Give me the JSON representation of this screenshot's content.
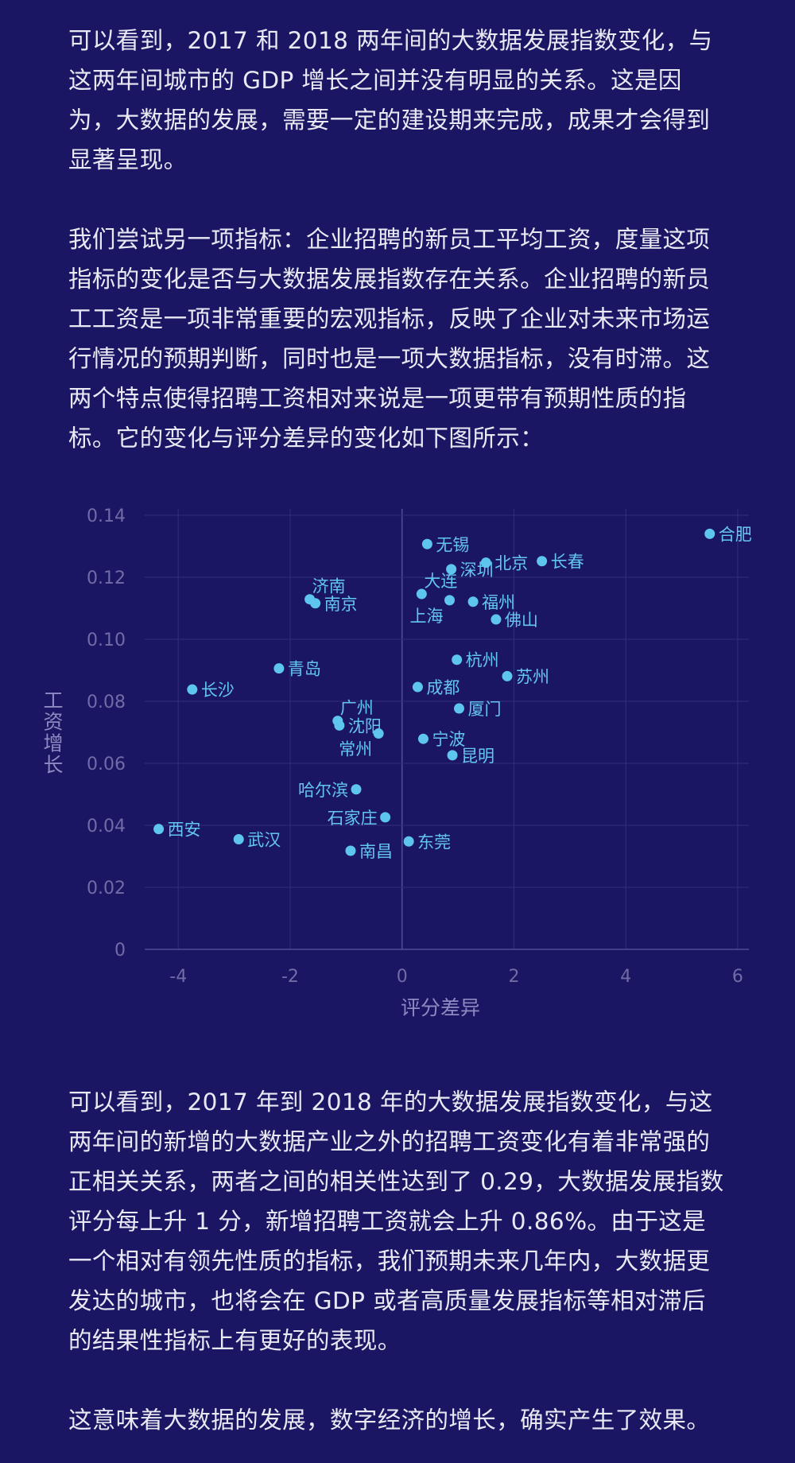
{
  "paragraphs": {
    "p1": "可以看到，2017 和 2018 两年间的大数据发展指数变化，与这两年间城市的 GDP 增长之间并没有明显的关系。这是因为，大数据的发展，需要一定的建设期来完成，成果才会得到显著呈现。",
    "p2": "我们尝试另一项指标：企业招聘的新员工平均工资，度量这项指标的变化是否与大数据发展指数存在关系。企业招聘的新员工工资是一项非常重要的宏观指标，反映了企业对未来市场运行情况的预期判断，同时也是一项大数据指标，没有时滞。这两个特点使得招聘工资相对来说是一项更带有预期性质的指标。它的变化与评分差异的变化如下图所示：",
    "p3": "可以看到，2017 年到 2018 年的大数据发展指数变化，与这两年间的新增的大数据产业之外的招聘工资变化有着非常强的正相关关系，两者之间的相关性达到了 0.29，大数据发展指数评分每上升 1 分，新增招聘工资就会上升 0.86%。由于这是一个相对有领先性质的指标，我们预期未来几年内，大数据更发达的城市，也将会在 GDP 或者高质量发展指标等相对滞后的结果性指标上有更好的表现。",
    "p4": "这意味着大数据的发展，数字经济的增长，确实产生了效果。"
  },
  "chart_data": {
    "type": "scatter",
    "xlabel": "评分差异",
    "ylabel": "工资增长",
    "xlim": [
      -4.6,
      6.2
    ],
    "ylim": [
      0,
      0.14
    ],
    "xticks": [
      -4,
      -2,
      0,
      2,
      4,
      6
    ],
    "yticks": [
      0,
      0.02,
      0.04,
      0.06,
      0.08,
      0.1,
      0.12,
      0.14
    ],
    "ytick_labels": [
      "0",
      "0.02",
      "0.04",
      "0.06",
      "0.08",
      "0.10",
      "0.12",
      "0.14"
    ],
    "grid": true,
    "point_color": "#5ec4f0",
    "points": [
      {
        "name": "合肥",
        "x": 5.5,
        "y": 0.134,
        "pos": "right"
      },
      {
        "name": "无锡",
        "x": 0.45,
        "y": 0.1307,
        "pos": "right"
      },
      {
        "name": "北京",
        "x": 1.5,
        "y": 0.1247,
        "pos": "right"
      },
      {
        "name": "长春",
        "x": 2.5,
        "y": 0.1252,
        "pos": "right"
      },
      {
        "name": "深圳",
        "x": 0.88,
        "y": 0.1226,
        "pos": "right"
      },
      {
        "name": "济南",
        "x": -1.65,
        "y": 0.1129,
        "pos": "above-right"
      },
      {
        "name": "南京",
        "x": -1.55,
        "y": 0.1116,
        "pos": "right"
      },
      {
        "name": "大连",
        "x": 0.35,
        "y": 0.1146,
        "pos": "above-right"
      },
      {
        "name": "福州",
        "x": 1.27,
        "y": 0.1121,
        "pos": "right"
      },
      {
        "name": "上海",
        "x": 0.85,
        "y": 0.1126,
        "pos": "below-left"
      },
      {
        "name": "佛山",
        "x": 1.68,
        "y": 0.1064,
        "pos": "right"
      },
      {
        "name": "杭州",
        "x": 0.98,
        "y": 0.0934,
        "pos": "right"
      },
      {
        "name": "青岛",
        "x": -2.2,
        "y": 0.0906,
        "pos": "right"
      },
      {
        "name": "苏州",
        "x": 1.88,
        "y": 0.0881,
        "pos": "right"
      },
      {
        "name": "长沙",
        "x": -3.75,
        "y": 0.0838,
        "pos": "right"
      },
      {
        "name": "成都",
        "x": 0.28,
        "y": 0.0846,
        "pos": "right"
      },
      {
        "name": "厦门",
        "x": 1.02,
        "y": 0.0777,
        "pos": "right"
      },
      {
        "name": "广州",
        "x": -1.15,
        "y": 0.0737,
        "pos": "above-right"
      },
      {
        "name": "沈阳",
        "x": -1.12,
        "y": 0.0722,
        "pos": "right"
      },
      {
        "name": "常州",
        "x": -0.42,
        "y": 0.0696,
        "pos": "below-left"
      },
      {
        "name": "宁波",
        "x": 0.38,
        "y": 0.0679,
        "pos": "right"
      },
      {
        "name": "昆明",
        "x": 0.9,
        "y": 0.0626,
        "pos": "right"
      },
      {
        "name": "哈尔滨",
        "x": -0.82,
        "y": 0.0516,
        "pos": "left"
      },
      {
        "name": "石家庄",
        "x": -0.3,
        "y": 0.0426,
        "pos": "left"
      },
      {
        "name": "西安",
        "x": -4.35,
        "y": 0.0388,
        "pos": "right"
      },
      {
        "name": "武汉",
        "x": -2.92,
        "y": 0.0355,
        "pos": "right"
      },
      {
        "name": "东莞",
        "x": 0.12,
        "y": 0.0348,
        "pos": "right"
      },
      {
        "name": "南昌",
        "x": -0.92,
        "y": 0.0318,
        "pos": "right"
      }
    ]
  }
}
